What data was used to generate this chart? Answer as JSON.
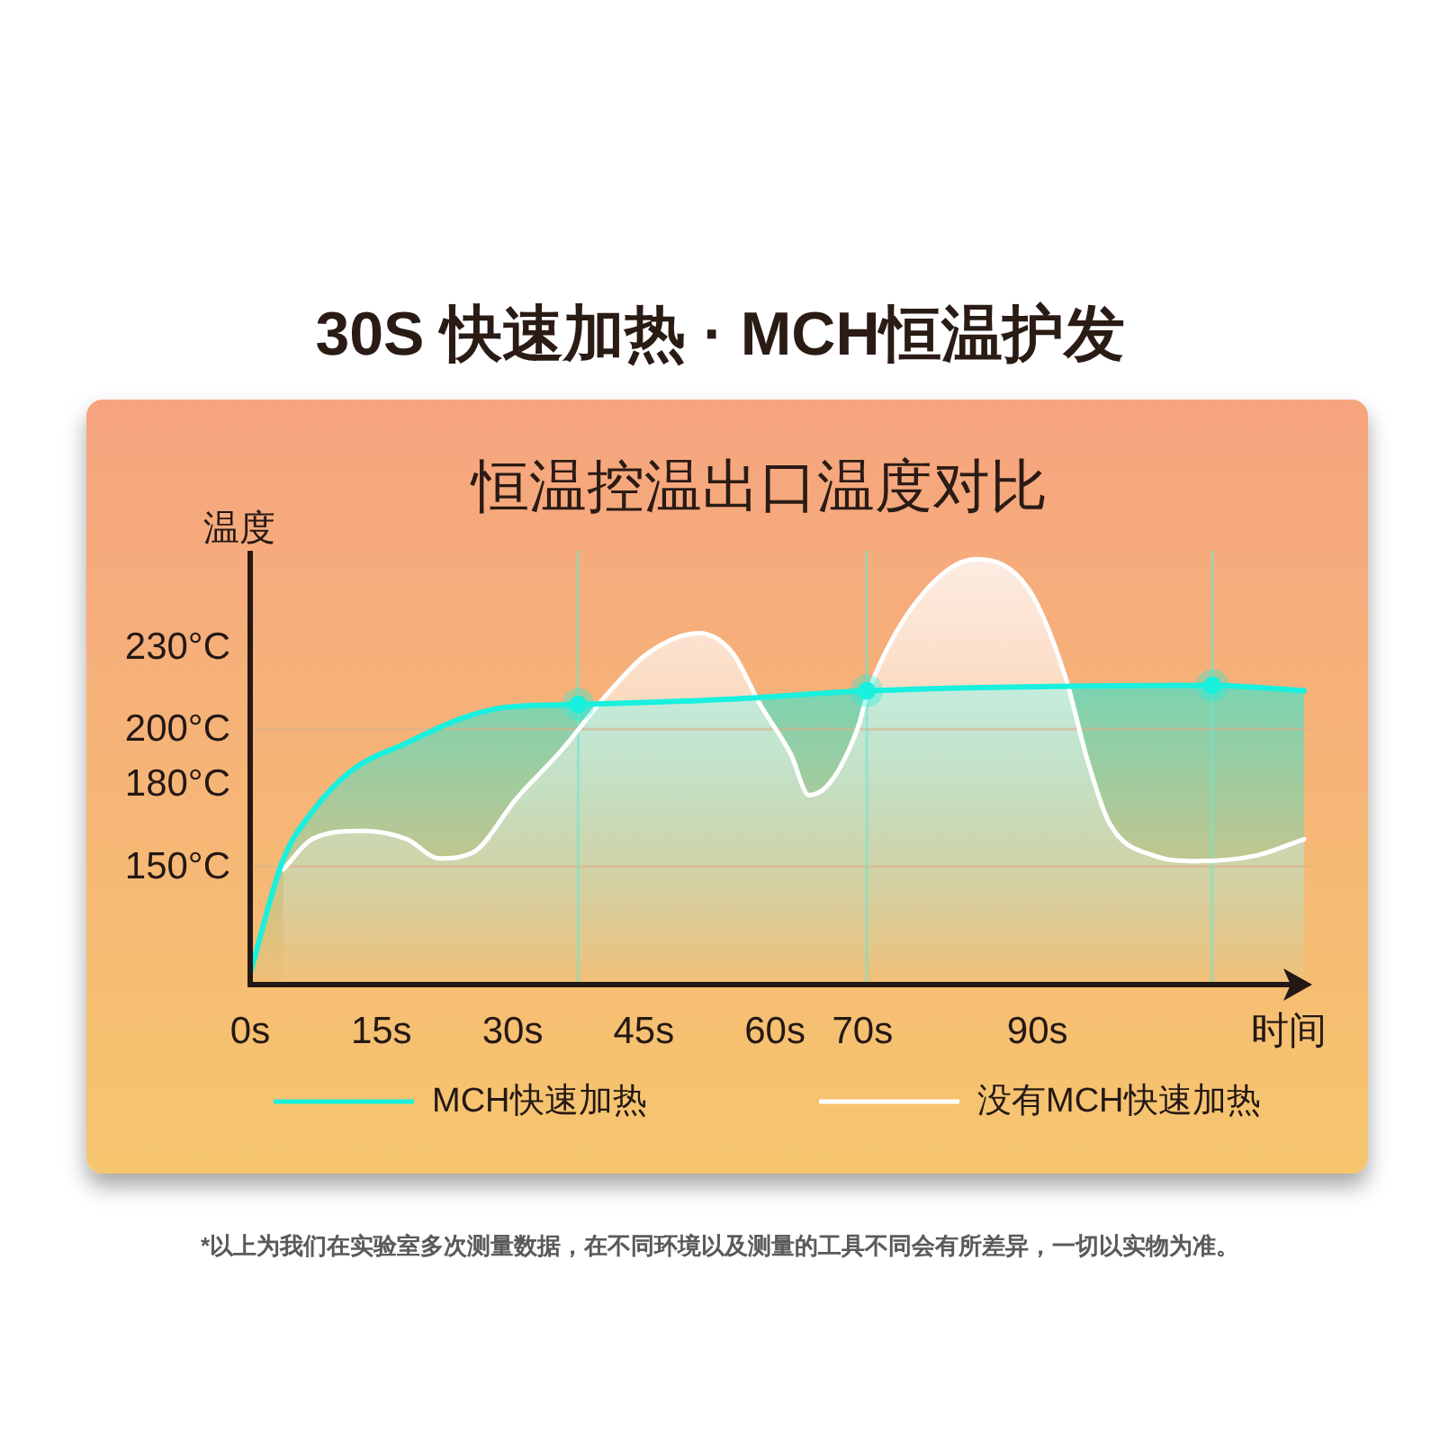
{
  "chart_data": {
    "type": "area",
    "title": "30S 快速加热 · MCH恒温护发",
    "subtitle": "恒温控温出口温度对比",
    "ylabel": "温度",
    "xlabel": "时间",
    "xlim": [
      0,
      121
    ],
    "xticks": [
      {
        "value": 0,
        "label": "0s"
      },
      {
        "value": 15,
        "label": "15s"
      },
      {
        "value": 30,
        "label": "30s"
      },
      {
        "value": 45,
        "label": "45s"
      },
      {
        "value": 60,
        "label": "60s"
      },
      {
        "value": 70,
        "label": "70s"
      },
      {
        "value": 90,
        "label": "90s"
      }
    ],
    "ylim": [
      107,
      265
    ],
    "yticks": [
      {
        "value": 150,
        "label": "150°C"
      },
      {
        "value": 180,
        "label": "180°C"
      },
      {
        "value": 200,
        "label": "200°C"
      },
      {
        "value": 230,
        "label": "230°C"
      }
    ],
    "series": [
      {
        "name": "MCH快速加热",
        "color": "#19f0de",
        "x": [
          0,
          3.7,
          7.1,
          11.6,
          17.9,
          24.2,
          29.2,
          37.5,
          55,
          70.5,
          110,
          120.5
        ],
        "values": [
          111,
          152,
          170,
          185,
          195,
          204,
          208,
          209,
          211,
          214,
          216,
          214
        ]
      },
      {
        "name": "没有MCH快速加热",
        "color": "#ffffff",
        "x": [
          3.8,
          7.1,
          12.8,
          17.9,
          21.6,
          25.4,
          30.5,
          35.5,
          40.6,
          45.6,
          51.3,
          55.1,
          58.3,
          61.8,
          63.9,
          66.4,
          69.4,
          70.7,
          76.3,
          83,
          89,
          93.2,
          95.7,
          98.2,
          103.3,
          108.3,
          115,
          120.5
        ],
        "values": [
          149,
          160,
          163,
          160,
          153,
          155,
          175,
          192,
          212,
          228,
          235,
          228,
          209,
          191,
          176,
          181,
          200,
          214,
          247,
          262,
          251,
          219,
          189,
          166,
          154,
          152,
          154,
          160
        ]
      },
      {
        "type": "scatter",
        "color": "#19f0de",
        "marker": "circle",
        "x": [
          37.5,
          70.5,
          110
        ],
        "values": [
          209,
          214,
          216
        ]
      }
    ],
    "ref_lines": [
      {
        "axis": "y",
        "value": 150,
        "color": "#d9b08c"
      },
      {
        "axis": "y",
        "value": 200,
        "color": "#d9b08c"
      },
      {
        "axis": "x",
        "value": 37.5,
        "color": "#6fe6cf"
      },
      {
        "axis": "x",
        "value": 70.5,
        "color": "#6fe6cf"
      },
      {
        "axis": "x",
        "value": 110,
        "color": "#6fe6cf"
      }
    ],
    "legend": "bottom",
    "annotations": [
      "*以上为我们在实验室多次测量数据，在不同环境以及测量的工具不同会有所差异，一切以实物为准。"
    ]
  }
}
